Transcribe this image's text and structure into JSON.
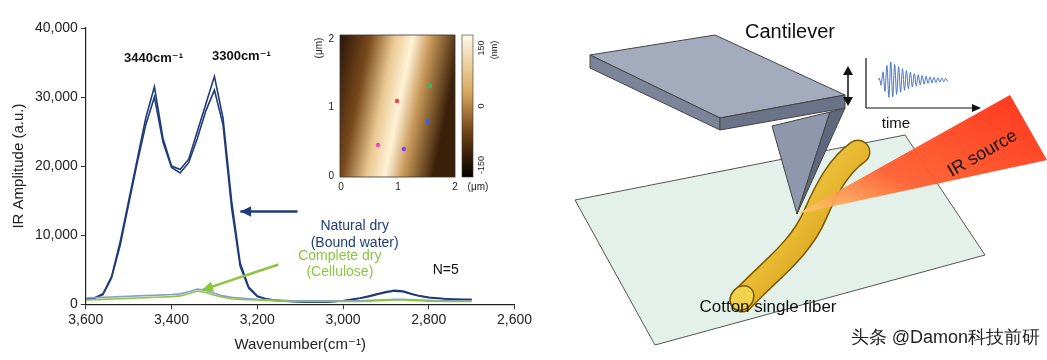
{
  "chart_data": {
    "type": "line",
    "x_label": "Wavenumber(cm⁻¹)",
    "y_label": "IR Amplitude (a.u.)",
    "x": [
      3600,
      3580,
      3560,
      3540,
      3520,
      3500,
      3480,
      3460,
      3440,
      3420,
      3400,
      3380,
      3360,
      3340,
      3320,
      3300,
      3280,
      3260,
      3240,
      3220,
      3200,
      3180,
      3160,
      3140,
      3120,
      3100,
      3080,
      3060,
      3040,
      3020,
      3000,
      2980,
      2960,
      2940,
      2920,
      2900,
      2880,
      2860,
      2840,
      2820,
      2800,
      2780,
      2760,
      2740,
      2720,
      2700
    ],
    "series": [
      {
        "color": "#1f3b7a",
        "values": [
          800,
          900,
          1500,
          4000,
          9000,
          15000,
          21000,
          27000,
          31500,
          24000,
          20000,
          19500,
          21000,
          25000,
          29000,
          33000,
          27000,
          15000,
          6000,
          2500,
          1200,
          800,
          600,
          500,
          400,
          350,
          300,
          300,
          300,
          400,
          500,
          700,
          900,
          1200,
          1500,
          1800,
          2000,
          1900,
          1500,
          1200,
          1000,
          900,
          800,
          700,
          700,
          700
        ]
      },
      {
        "color": "#1f3b7a",
        "values": [
          700,
          850,
          1400,
          3800,
          8500,
          14500,
          20500,
          26000,
          30000,
          23500,
          19800,
          19000,
          20500,
          24000,
          28000,
          31000,
          26000,
          14000,
          5500,
          2300,
          1100,
          750,
          550,
          450,
          380,
          330,
          300,
          280,
          300,
          380,
          480,
          650,
          850,
          1100,
          1400,
          1700,
          1900,
          1800,
          1450,
          1150,
          950,
          850,
          750,
          700,
          650,
          650
        ]
      },
      {
        "color": "#8a9bd0",
        "values": [
          900,
          950,
          1000,
          1050,
          1100,
          1150,
          1200,
          1250,
          1300,
          1350,
          1400,
          1500,
          1800,
          2200,
          2000,
          1600,
          1200,
          1000,
          900,
          800,
          700,
          650,
          600,
          550,
          500,
          500,
          500,
          500,
          500,
          500,
          500,
          500,
          500,
          550,
          600,
          650,
          700,
          700,
          650,
          600,
          550,
          500,
          500,
          500,
          500,
          500
        ]
      },
      {
        "color": "#8cc63e",
        "values": [
          600,
          650,
          700,
          750,
          800,
          850,
          900,
          950,
          1000,
          1050,
          1100,
          1200,
          1500,
          1900,
          1700,
          1300,
          1000,
          800,
          700,
          650,
          600,
          550,
          500,
          450,
          400,
          400,
          400,
          400,
          400,
          400,
          400,
          400,
          400,
          450,
          500,
          550,
          600,
          600,
          550,
          500,
          450,
          450,
          400,
          400,
          400,
          400
        ]
      }
    ],
    "xlim": [
      3600,
      2600
    ],
    "xticks": [
      {
        "value": 3600,
        "label": "3,600"
      },
      {
        "value": 3400,
        "label": "3,400"
      },
      {
        "value": 3200,
        "label": "3,200"
      },
      {
        "value": 3000,
        "label": "3,000"
      },
      {
        "value": 2800,
        "label": "2,800"
      },
      {
        "value": 2600,
        "label": "2,600"
      }
    ],
    "ylim": [
      0,
      40000
    ],
    "yticks": [
      0,
      {
        "value": 10000,
        "label": "10,000"
      },
      {
        "value": 20000,
        "label": "20,000"
      },
      {
        "value": 30000,
        "label": "30,000"
      },
      {
        "value": 40000,
        "label": "40,000"
      }
    ],
    "grid": false,
    "peak_labels": [
      "3440cm⁻¹",
      "3300cm⁻¹"
    ],
    "annotations": [
      {
        "text": "Natural dry",
        "subtext": "(Bound water)",
        "color": "#1f3b7a"
      },
      {
        "text": "Complete dry",
        "subtext": "(Cellulose)",
        "color": "#8cc63e"
      }
    ],
    "sample_label": "N=5"
  },
  "inset": {
    "y_axis_label": "(μm)",
    "y_ticks": [
      0,
      1,
      2
    ],
    "x_axis_label": "(μm)",
    "x_ticks": [
      0,
      1,
      2
    ],
    "colorbar_label": "(nm)",
    "colorbar_ticks": [
      150,
      0,
      -150
    ]
  },
  "diagram": {
    "cantilever": "Cantilever",
    "time": "time",
    "source": "IR source",
    "fiber": "Cotton single fiber"
  },
  "watermark": "头条 @Damon科技前研"
}
